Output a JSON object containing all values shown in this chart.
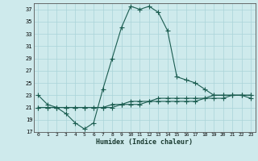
{
  "xlabel": "Humidex (Indice chaleur)",
  "x": [
    0,
    1,
    2,
    3,
    4,
    5,
    6,
    7,
    8,
    9,
    10,
    11,
    12,
    13,
    14,
    15,
    16,
    17,
    18,
    19,
    20,
    21,
    22,
    23
  ],
  "line1": [
    23,
    21.5,
    21,
    20,
    18.5,
    17.5,
    18.5,
    24,
    29,
    34,
    37.5,
    37,
    37.5,
    36.5,
    33.5,
    26,
    25.5,
    25,
    24,
    23,
    23,
    23,
    23,
    22.5
  ],
  "line2": [
    21,
    21,
    21,
    21,
    21,
    21,
    21,
    21,
    21,
    21.5,
    21.5,
    21.5,
    22,
    22,
    22,
    22,
    22,
    22,
    22.5,
    22.5,
    22.5,
    23,
    23,
    23
  ],
  "line3": [
    21,
    21,
    21,
    21,
    21,
    21,
    21,
    21,
    21.5,
    21.5,
    22,
    22,
    22,
    22.5,
    22.5,
    22.5,
    22.5,
    22.5,
    22.5,
    23,
    23,
    23,
    23,
    23
  ],
  "ylim": [
    17,
    38
  ],
  "yticks": [
    17,
    19,
    21,
    23,
    25,
    27,
    29,
    31,
    33,
    35,
    37
  ],
  "xticks": [
    0,
    1,
    2,
    3,
    4,
    5,
    6,
    7,
    8,
    9,
    10,
    11,
    12,
    13,
    14,
    15,
    16,
    17,
    18,
    19,
    20,
    21,
    22,
    23
  ],
  "bg_color": "#ceeaec",
  "grid_color": "#aad4d8",
  "line_color": "#1a5c50",
  "linewidth": 0.8,
  "markersize": 3.0
}
